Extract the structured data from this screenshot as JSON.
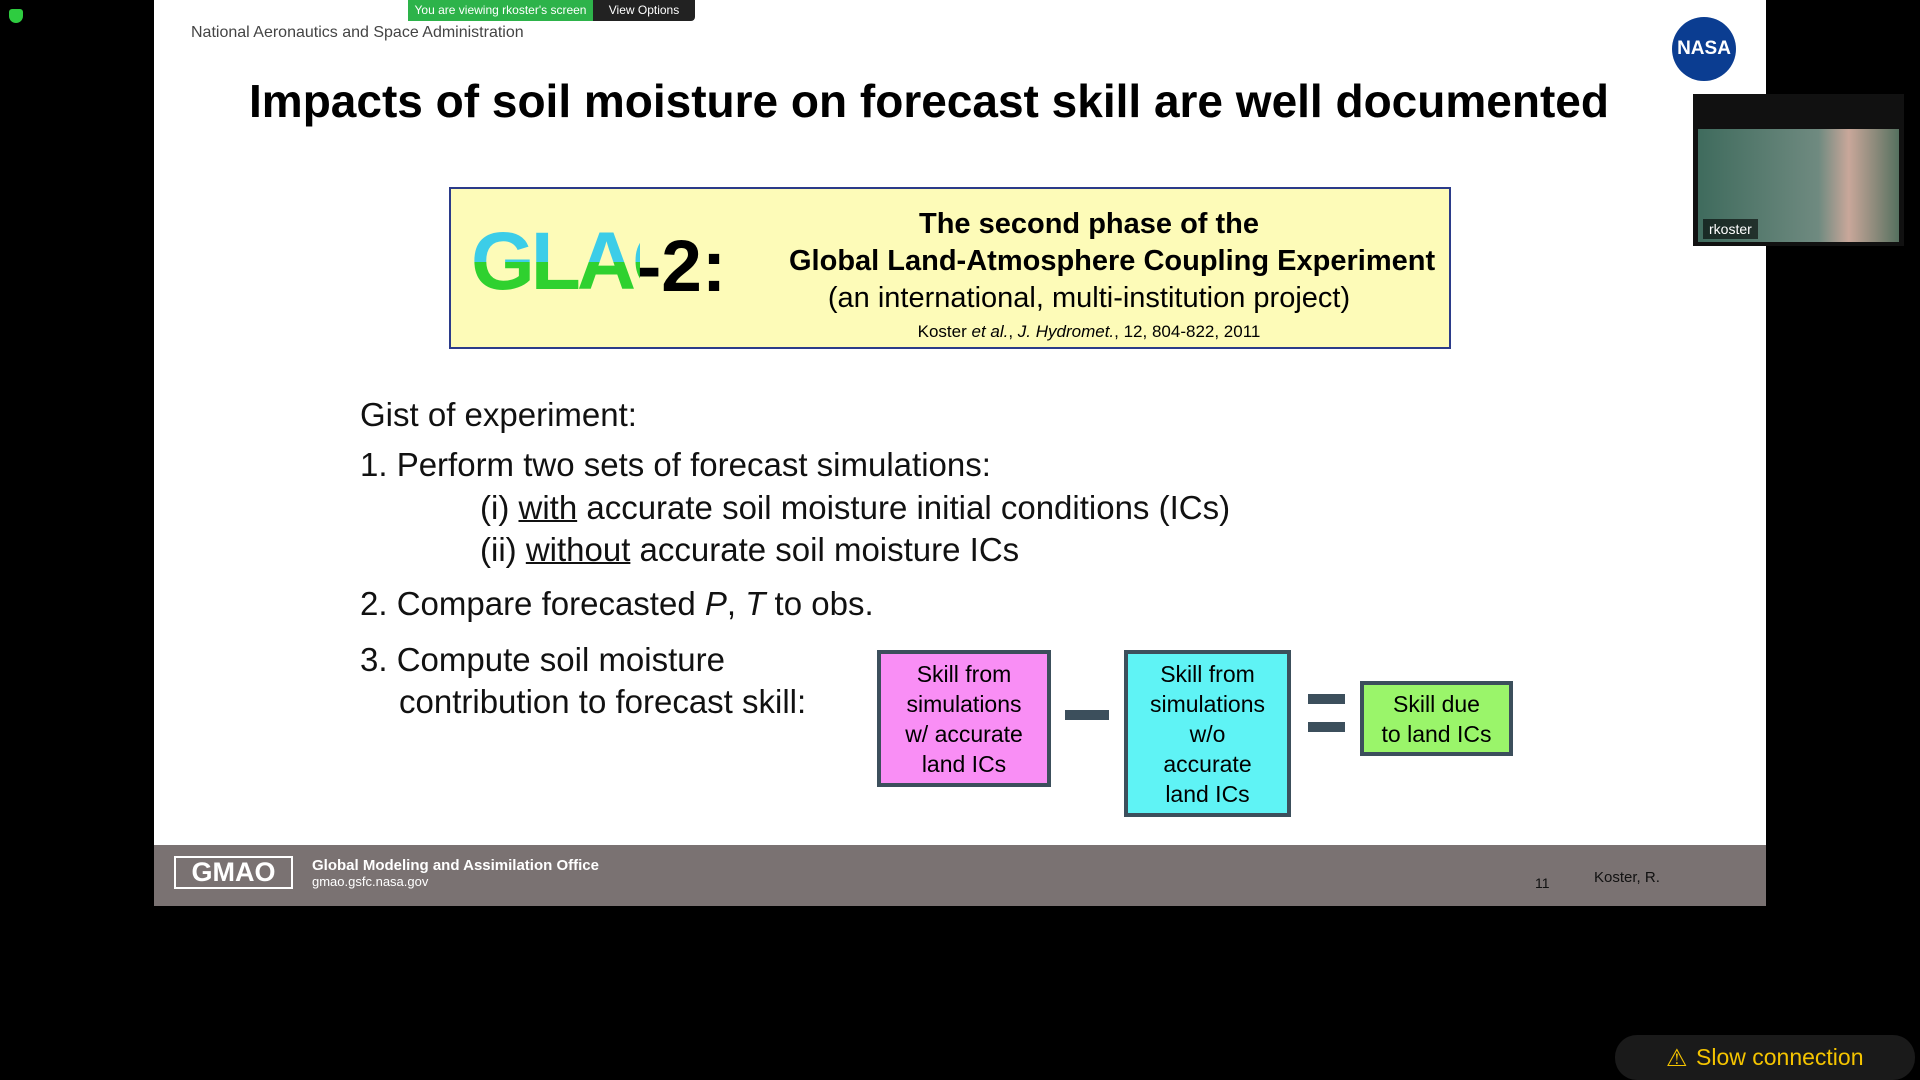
{
  "zoom_bar": {
    "viewing": "You are viewing rkoster's screen",
    "options": "View Options"
  },
  "slide": {
    "header": {
      "agency": "National Aeronautics and Space Administration",
      "logo": "NASA"
    },
    "title": "Impacts of soil moisture on forecast skill are well documented",
    "glace_box": {
      "logo": "GLACE",
      "suffix": "-2:",
      "lines": [
        "The second phase of the",
        "Global Land-Atmosphere Coupling Experiment",
        "(an international, multi-institution project)"
      ],
      "citation": [
        "Koster ",
        "et al.",
        ", ",
        "J. Hydromet.",
        ", 12, 804-822, 2011"
      ]
    },
    "body": {
      "intro": "Gist of experiment:",
      "item1": "1. Perform two sets of forecast simulations:",
      "sub1": [
        "(i) ",
        "with",
        " accurate soil moisture initial conditions (ICs)"
      ],
      "sub2": [
        "(ii) ",
        "without",
        " accurate soil moisture ICs"
      ],
      "item2": [
        "2. Compare forecasted ",
        "P",
        ", ",
        "T",
        " to obs."
      ],
      "item3": [
        "3. Compute soil moisture",
        "contribution to forecast skill:"
      ]
    },
    "equation": {
      "box_with": [
        "Skill from",
        "simulations",
        "w/ accurate",
        "land ICs"
      ],
      "box_without": [
        "Skill from",
        "simulations",
        "w/o",
        "accurate",
        "land ICs"
      ],
      "box_result": [
        "Skill due",
        "to land ICs"
      ]
    },
    "footer": {
      "logo": "GMAO",
      "office": "Global Modeling and Assimilation Office",
      "url": "gmao.gsfc.nasa.gov",
      "page": "11",
      "author": "Koster, R."
    }
  },
  "video": {
    "name": "rkoster"
  },
  "status": {
    "warning": "Slow connection"
  }
}
